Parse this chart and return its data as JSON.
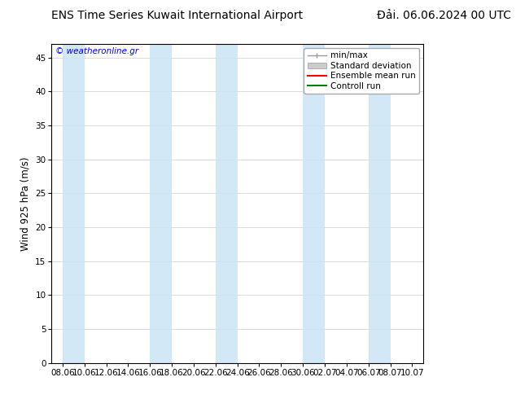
{
  "title_left": "ENS Time Series Kuwait International Airport",
  "title_right": "Đải. 06.06.2024 00 UTC",
  "ylabel": "Wind 925 hPa (m/s)",
  "watermark": "© weatheronline.gr",
  "ylim": [
    0,
    47
  ],
  "yticks": [
    0,
    5,
    10,
    15,
    20,
    25,
    30,
    35,
    40,
    45
  ],
  "xtick_labels": [
    "08.06",
    "10.06",
    "12.06",
    "14.06",
    "16.06",
    "18.06",
    "20.06",
    "22.06",
    "24.06",
    "26.06",
    "28.06",
    "30.06",
    "02.07",
    "04.07",
    "06.07",
    "08.07",
    "10.07"
  ],
  "n_xticks": 17,
  "bg_color": "#ffffff",
  "plot_bg_color": "#ffffff",
  "shaded_band_color": "#cce5f5",
  "shaded_band_alpha": 0.85,
  "band_ranges": [
    [
      0,
      1
    ],
    [
      4,
      5
    ],
    [
      7,
      8
    ],
    [
      11,
      12
    ],
    [
      14,
      15
    ]
  ],
  "legend_labels": [
    "min/max",
    "Standard deviation",
    "Ensemble mean run",
    "Controll run"
  ],
  "title_fontsize": 10,
  "tick_fontsize": 7.5,
  "ylabel_fontsize": 8.5,
  "watermark_fontsize": 7.5,
  "legend_fontsize": 7.5
}
